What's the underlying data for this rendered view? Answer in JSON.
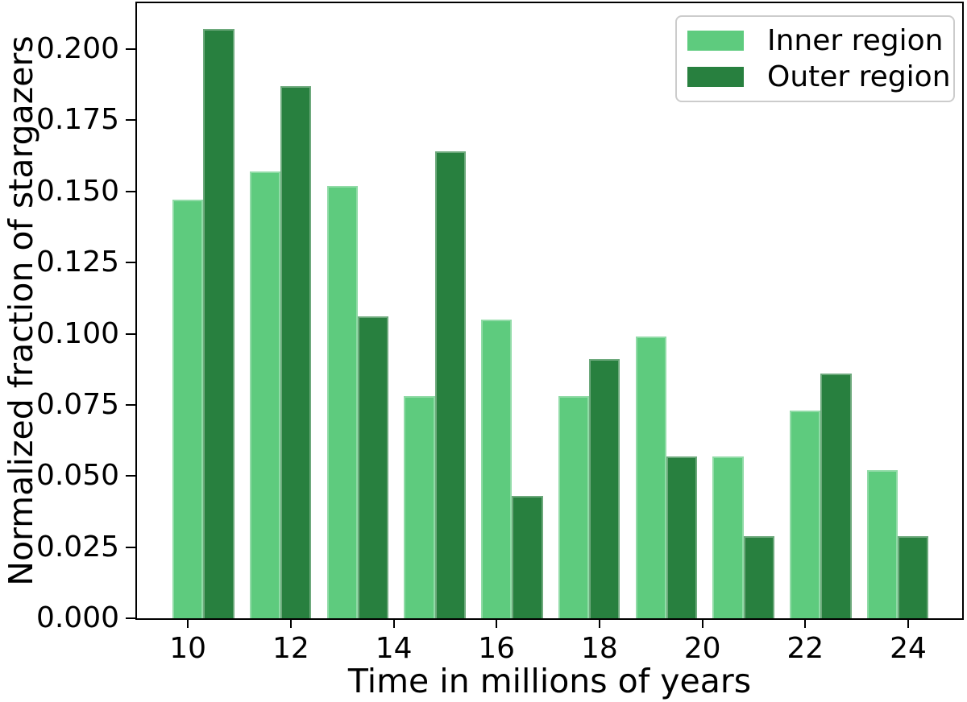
{
  "chart_data": {
    "type": "bar",
    "title": "",
    "xlabel": "Time in millions of years",
    "ylabel": "Normalized fraction of stargazers",
    "categories": [
      10,
      11.5,
      13,
      14.5,
      16,
      17.5,
      19,
      20.5,
      22,
      23.5
    ],
    "series": [
      {
        "name": "Inner region",
        "color": "#5ecb7e",
        "values": [
          0.147,
          0.157,
          0.152,
          0.078,
          0.105,
          0.078,
          0.099,
          0.057,
          0.073,
          0.052
        ]
      },
      {
        "name": "Outer region",
        "color": "#28803f",
        "values": [
          0.207,
          0.187,
          0.106,
          0.164,
          0.043,
          0.091,
          0.057,
          0.029,
          0.086,
          0.029
        ]
      }
    ],
    "bar_width": 0.6,
    "series_offset": 0.6,
    "xticks": [
      10,
      12,
      14,
      16,
      18,
      20,
      22,
      24
    ],
    "yticks": [
      0.0,
      0.025,
      0.05,
      0.075,
      0.1,
      0.125,
      0.15,
      0.175,
      0.2
    ],
    "ytick_labels": [
      "0.000",
      "0.025",
      "0.050",
      "0.075",
      "0.100",
      "0.125",
      "0.150",
      "0.175",
      "0.200"
    ],
    "xlim": [
      9.01,
      25.05
    ],
    "ylim": [
      0,
      0.2161
    ],
    "grid": false,
    "legend_position": "upper right",
    "colors": {
      "spine": "#000000",
      "text": "#000000",
      "legend_border": "#cccccc",
      "background": "#ffffff"
    }
  }
}
